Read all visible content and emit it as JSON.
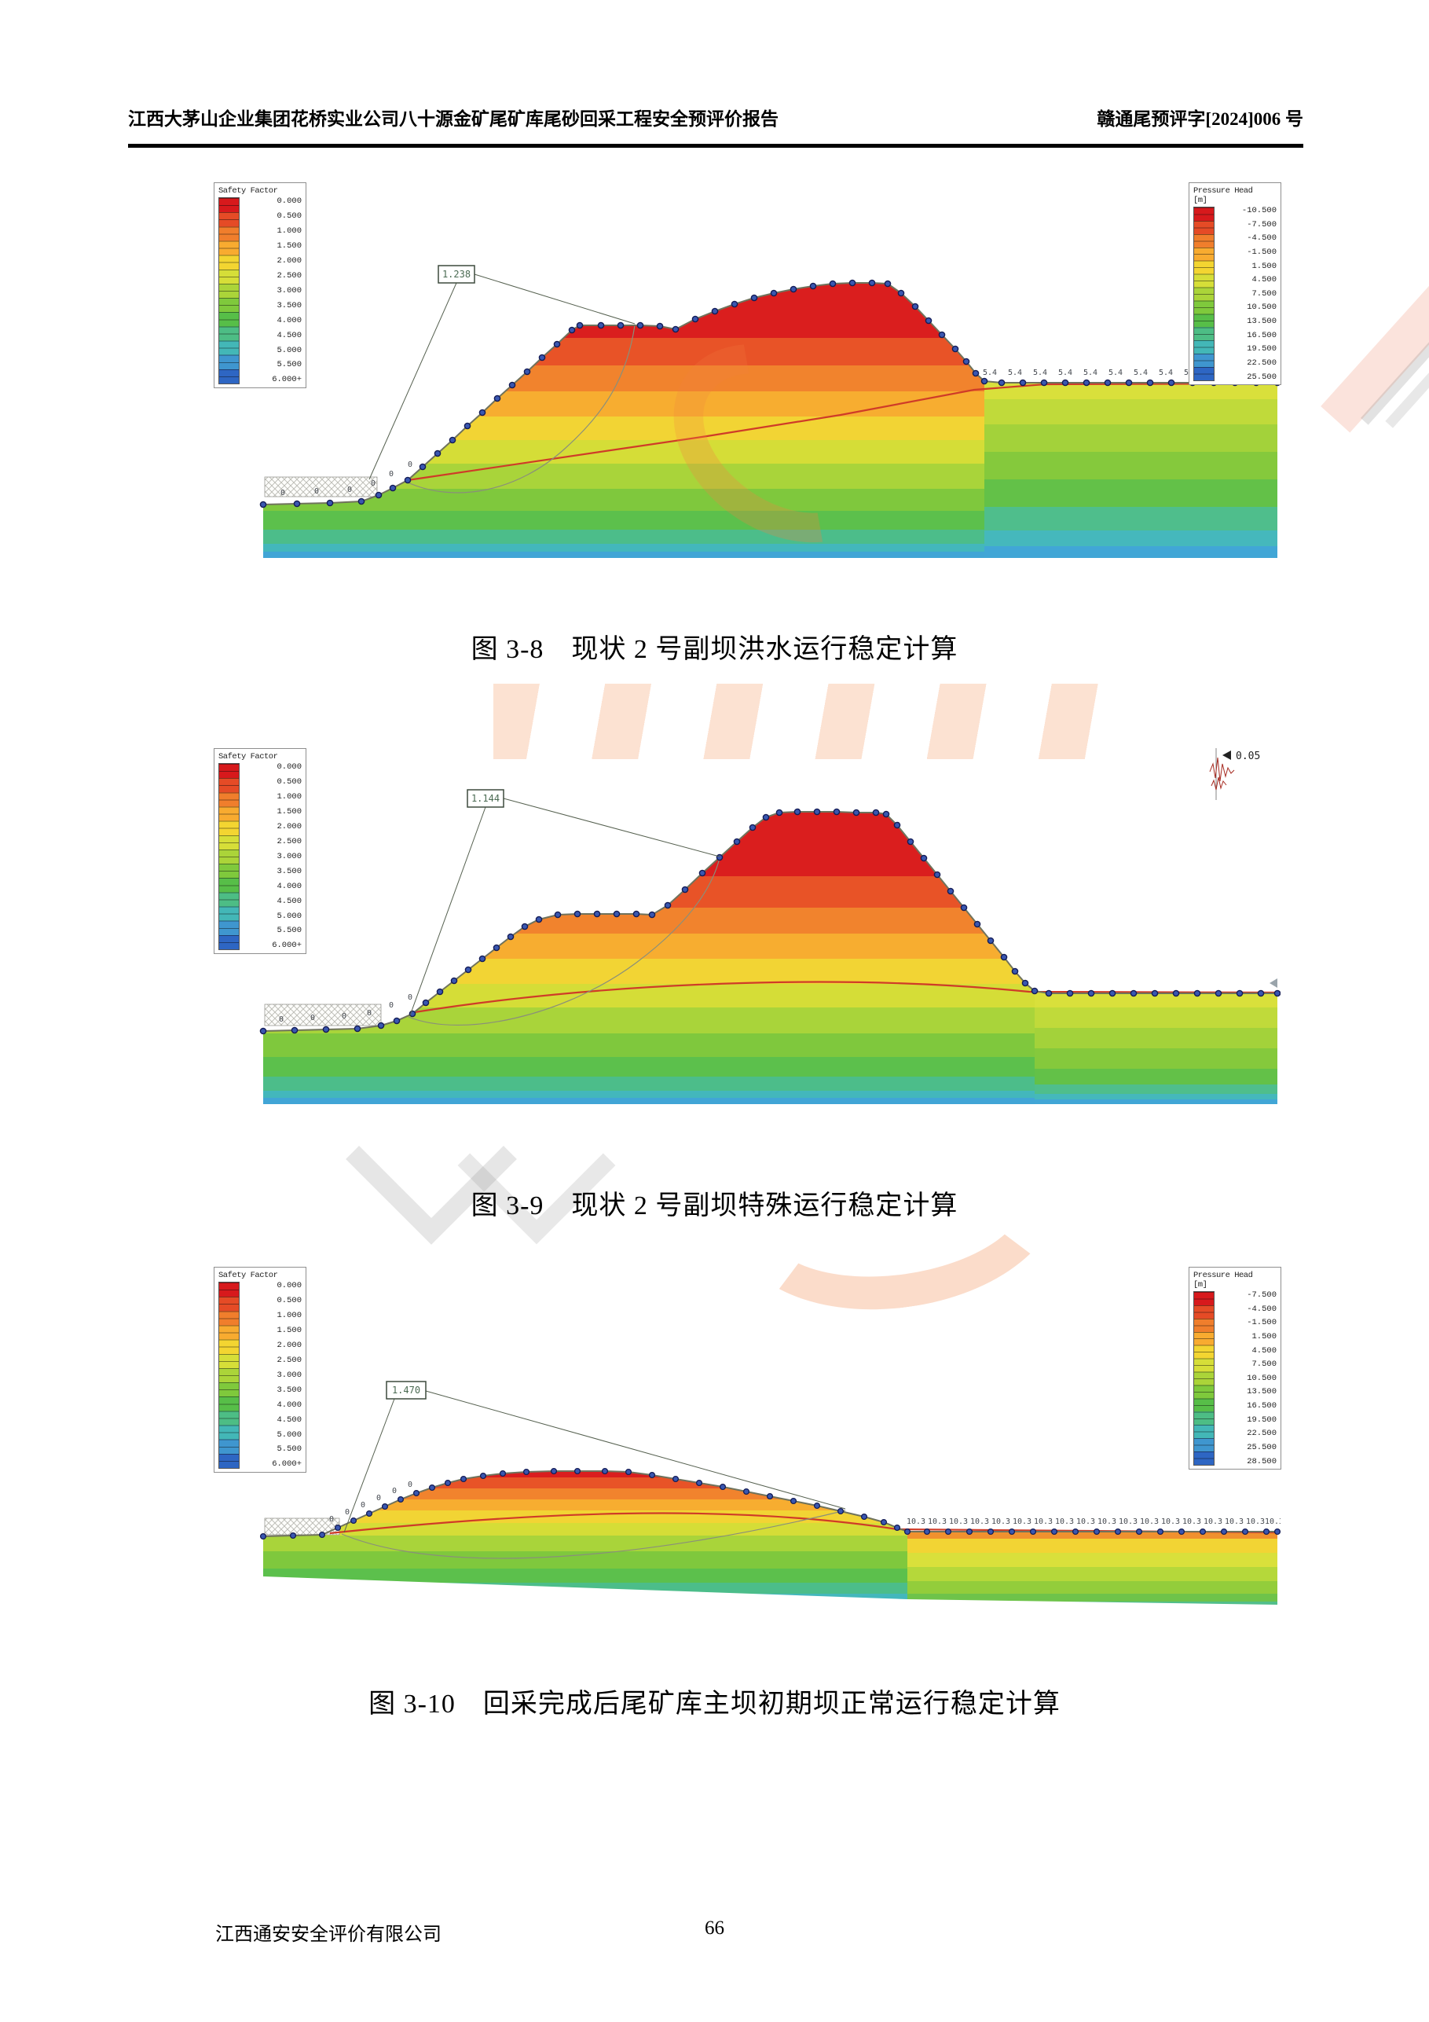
{
  "header": {
    "left": "江西大茅山企业集团花桥实业公司八十源金矿尾矿库尾砂回采工程安全预评价报告",
    "right": "赣通尾预评字[2024]006 号"
  },
  "legend_titles": {
    "safety": "Safety Factor",
    "pressure": "Pressure Head",
    "pressure_unit": "[m]"
  },
  "safety_ticks": [
    "0.000",
    "0.500",
    "1.000",
    "1.500",
    "2.000",
    "2.500",
    "3.000",
    "3.500",
    "4.000",
    "4.500",
    "5.000",
    "5.500",
    "6.000+"
  ],
  "figures": {
    "fig1": {
      "caption": "图 3-8　现状 2 号副坝洪水运行稳定计算",
      "safety_factor": "1.238",
      "surface_zero": "0",
      "plateau_value": "5.4",
      "pressure_ticks": [
        "-10.500",
        "-7.500",
        "-4.500",
        "-1.500",
        "1.500",
        "4.500",
        "7.500",
        "10.500",
        "13.500",
        "16.500",
        "19.500",
        "22.500",
        "25.500"
      ]
    },
    "fig2": {
      "caption": "图 3-9　现状 2 号副坝特殊运行稳定计算",
      "safety_factor": "1.144",
      "surface_zero": "0",
      "seismic_coefficient": "0.05"
    },
    "fig3": {
      "caption": "图 3-10　回采完成后尾矿库主坝初期坝正常运行稳定计算",
      "safety_factor": "1.470",
      "surface_zero": "0",
      "plateau_value": "10.3",
      "pressure_ticks": [
        "-7.500",
        "-4.500",
        "-1.500",
        "1.500",
        "4.500",
        "7.500",
        "10.500",
        "13.500",
        "16.500",
        "19.500",
        "22.500",
        "25.500",
        "28.500"
      ]
    }
  },
  "footer": {
    "company": "江西通安安全评价有限公司",
    "page_number": "66"
  },
  "colors": {
    "ramp": [
      "#d7191c",
      "#e54b26",
      "#f07e2c",
      "#f8ab30",
      "#f3d531",
      "#d6de38",
      "#abd439",
      "#7fc93c",
      "#57be48",
      "#4dbd85",
      "#43b7b7",
      "#3f96cf",
      "#2e66c3"
    ],
    "phreatic_line": "#cf3b28",
    "marker_dot": "#2b3f8c"
  }
}
